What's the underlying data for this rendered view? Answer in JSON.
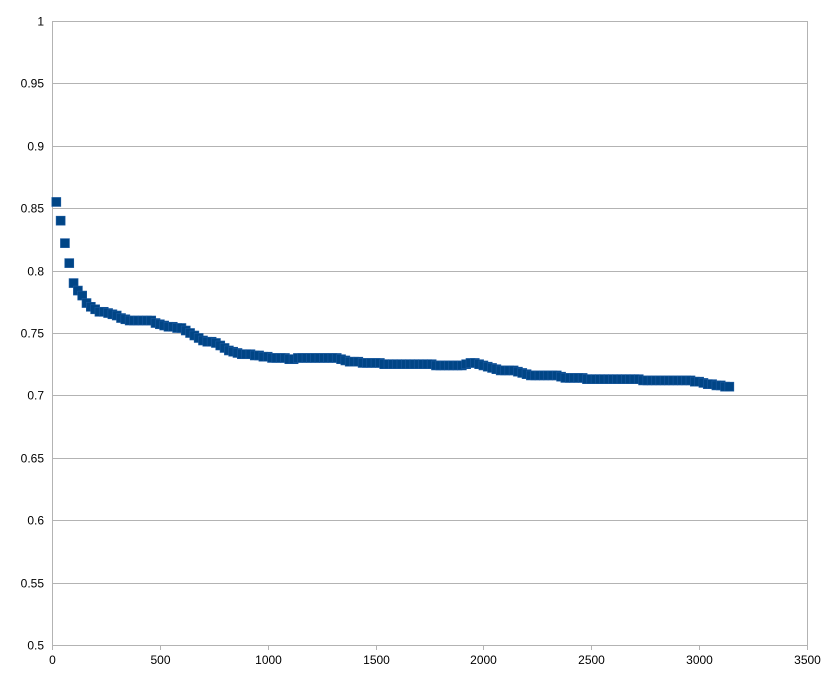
{
  "chart_data": {
    "type": "scatter",
    "title": "",
    "xlabel": "",
    "ylabel": "",
    "xlim": [
      0,
      3500
    ],
    "ylim": [
      0.5,
      1
    ],
    "x_ticks": [
      0,
      500,
      1000,
      1500,
      2000,
      2500,
      3000,
      3500
    ],
    "y_ticks": [
      0.5,
      0.55,
      0.6,
      0.65,
      0.7,
      0.75,
      0.8,
      0.85,
      0.9,
      0.95,
      1
    ],
    "x_tick_labels": [
      "0",
      "500",
      "1000",
      "1500",
      "2000",
      "2500",
      "3000",
      "3500"
    ],
    "y_tick_labels": [
      "0.5",
      "0.55",
      "0.6",
      "0.65",
      "0.7",
      "0.75",
      "0.8",
      "0.85",
      "0.9",
      "0.95",
      "1"
    ],
    "grid": "horizontal",
    "legend": "none",
    "marker": "square",
    "marker_color": "#004586",
    "grid_color": "#b3b3b3",
    "series": [
      {
        "x": [
          20,
          40,
          60,
          80,
          100,
          120,
          140,
          160,
          180,
          200,
          220,
          240,
          260,
          280,
          300,
          320,
          340,
          360,
          380,
          400,
          420,
          440,
          460,
          480,
          500,
          520,
          540,
          560,
          580,
          600,
          620,
          640,
          660,
          680,
          700,
          720,
          740,
          760,
          780,
          800,
          820,
          840,
          860,
          880,
          900,
          920,
          940,
          960,
          980,
          1000,
          1020,
          1040,
          1060,
          1080,
          1100,
          1120,
          1140,
          1160,
          1180,
          1200,
          1220,
          1240,
          1260,
          1280,
          1300,
          1320,
          1340,
          1360,
          1380,
          1400,
          1420,
          1440,
          1460,
          1480,
          1500,
          1520,
          1540,
          1560,
          1580,
          1600,
          1620,
          1640,
          1660,
          1680,
          1700,
          1720,
          1740,
          1760,
          1780,
          1800,
          1820,
          1840,
          1860,
          1880,
          1900,
          1920,
          1940,
          1960,
          1980,
          2000,
          2020,
          2040,
          2060,
          2080,
          2100,
          2120,
          2140,
          2160,
          2180,
          2200,
          2220,
          2240,
          2260,
          2280,
          2300,
          2320,
          2340,
          2360,
          2380,
          2400,
          2420,
          2440,
          2460,
          2480,
          2500,
          2520,
          2540,
          2560,
          2580,
          2600,
          2620,
          2640,
          2660,
          2680,
          2700,
          2720,
          2740,
          2760,
          2780,
          2800,
          2820,
          2840,
          2860,
          2880,
          2900,
          2920,
          2940,
          2960,
          2980,
          3000,
          3020,
          3040,
          3060,
          3080,
          3100,
          3120,
          3140
        ],
        "y": [
          0.855,
          0.84,
          0.822,
          0.806,
          0.79,
          0.784,
          0.78,
          0.774,
          0.771,
          0.769,
          0.767,
          0.767,
          0.766,
          0.765,
          0.764,
          0.762,
          0.761,
          0.76,
          0.76,
          0.76,
          0.76,
          0.76,
          0.76,
          0.758,
          0.757,
          0.756,
          0.755,
          0.755,
          0.754,
          0.754,
          0.752,
          0.75,
          0.748,
          0.746,
          0.744,
          0.743,
          0.743,
          0.742,
          0.74,
          0.738,
          0.736,
          0.735,
          0.734,
          0.733,
          0.733,
          0.733,
          0.732,
          0.732,
          0.731,
          0.731,
          0.73,
          0.73,
          0.73,
          0.73,
          0.729,
          0.729,
          0.73,
          0.73,
          0.73,
          0.73,
          0.73,
          0.73,
          0.73,
          0.73,
          0.73,
          0.73,
          0.729,
          0.728,
          0.727,
          0.727,
          0.727,
          0.726,
          0.726,
          0.726,
          0.726,
          0.726,
          0.725,
          0.725,
          0.725,
          0.725,
          0.725,
          0.725,
          0.725,
          0.725,
          0.725,
          0.725,
          0.725,
          0.725,
          0.724,
          0.724,
          0.724,
          0.724,
          0.724,
          0.724,
          0.724,
          0.725,
          0.726,
          0.726,
          0.725,
          0.724,
          0.723,
          0.722,
          0.721,
          0.72,
          0.72,
          0.72,
          0.72,
          0.719,
          0.718,
          0.717,
          0.716,
          0.716,
          0.716,
          0.716,
          0.716,
          0.716,
          0.716,
          0.715,
          0.714,
          0.714,
          0.714,
          0.714,
          0.714,
          0.713,
          0.713,
          0.713,
          0.713,
          0.713,
          0.713,
          0.713,
          0.713,
          0.713,
          0.713,
          0.713,
          0.713,
          0.713,
          0.712,
          0.712,
          0.712,
          0.712,
          0.712,
          0.712,
          0.712,
          0.712,
          0.712,
          0.712,
          0.712,
          0.712,
          0.711,
          0.711,
          0.71,
          0.709,
          0.709,
          0.708,
          0.708,
          0.707,
          0.707
        ]
      }
    ]
  }
}
